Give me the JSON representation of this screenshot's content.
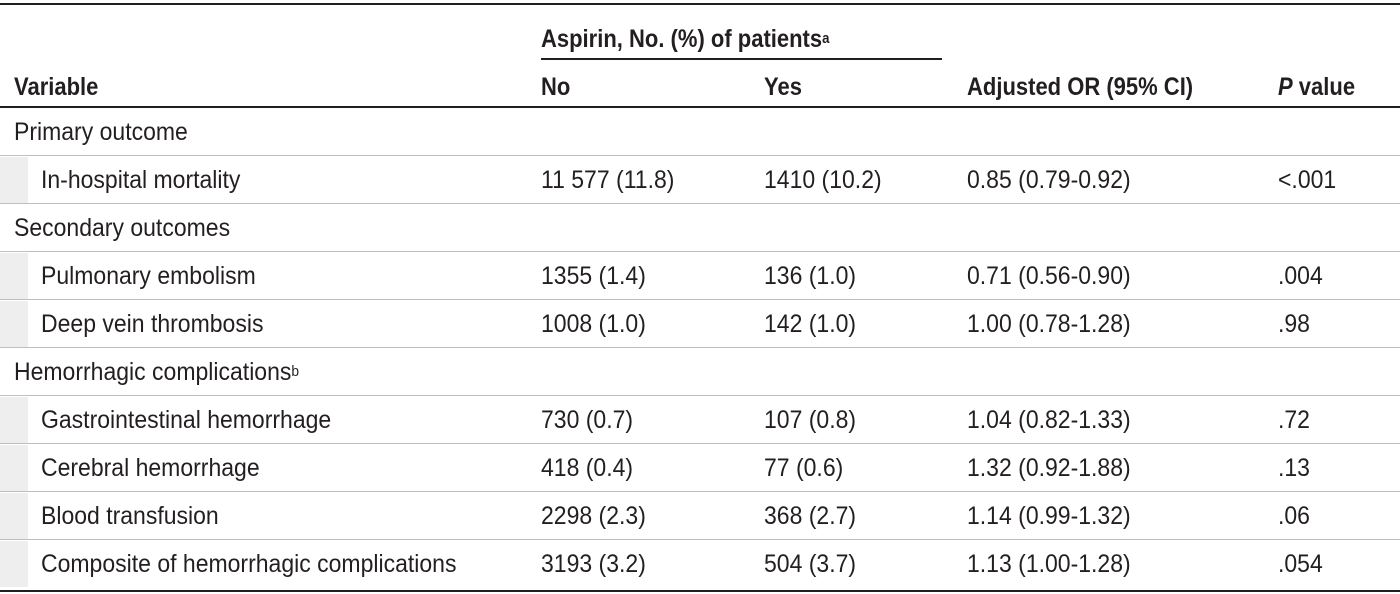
{
  "header": {
    "variable": "Variable",
    "aspirin_group": "Aspirin, No. (%) of patients",
    "aspirin_group_note": "a",
    "no": "No",
    "yes": "Yes",
    "or": "Adjusted OR (95% CI)",
    "p_italic": "P",
    "p_rest": " value"
  },
  "sections": [
    {
      "label": "Primary outcome",
      "note": ""
    },
    {
      "label": "Secondary outcomes",
      "note": ""
    },
    {
      "label": "Hemorrhagic complications",
      "note": "b"
    }
  ],
  "rows": [
    {
      "variable": "In-hospital mortality",
      "no": "11 577 (11.8)",
      "yes": "1410 (10.2)",
      "or": "0.85 (0.79-0.92)",
      "p": "<.001"
    },
    {
      "variable": "Pulmonary embolism",
      "no": "1355 (1.4)",
      "yes": "136 (1.0)",
      "or": "0.71 (0.56-0.90)",
      "p": ".004"
    },
    {
      "variable": "Deep vein thrombosis",
      "no": "1008 (1.0)",
      "yes": "142 (1.0)",
      "or": "1.00 (0.78-1.28)",
      "p": ".98"
    },
    {
      "variable": "Gastrointestinal hemorrhage",
      "no": "730 (0.7)",
      "yes": "107 (0.8)",
      "or": "1.04 (0.82-1.33)",
      "p": ".72"
    },
    {
      "variable": "Cerebral hemorrhage",
      "no": "418 (0.4)",
      "yes": "77 (0.6)",
      "or": "1.32 (0.92-1.88)",
      "p": ".13"
    },
    {
      "variable": "Blood transfusion",
      "no": "2298 (2.3)",
      "yes": "368 (2.7)",
      "or": "1.14 (0.99-1.32)",
      "p": ".06"
    },
    {
      "variable": "Composite of hemorrhagic complications",
      "no": "3193 (3.2)",
      "yes": "504 (3.7)",
      "or": "1.13 (1.00-1.28)",
      "p": ".054"
    }
  ]
}
